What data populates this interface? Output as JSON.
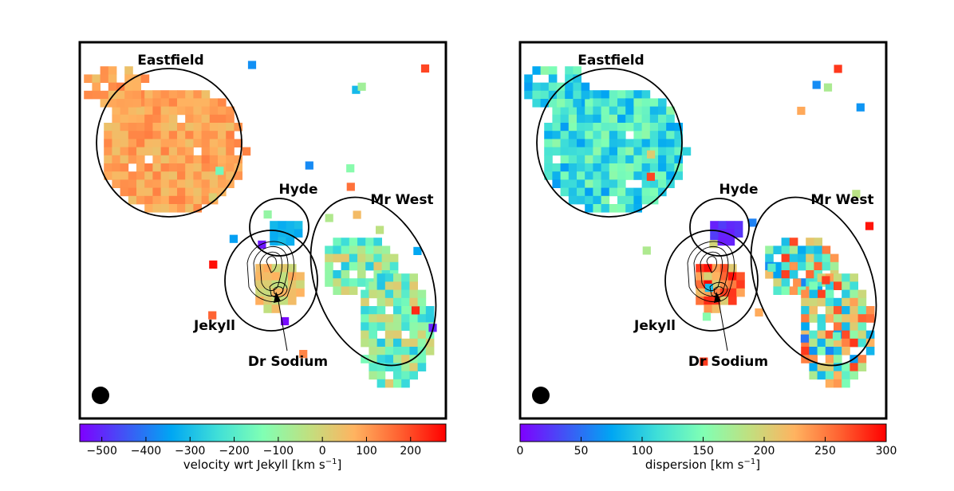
{
  "chart_data": [
    {
      "type": "heatmap",
      "title": "",
      "map_name": "velocity",
      "colorbar": {
        "label_prefix": "velocity wrt Jekyll [km s",
        "label_exp": "−1",
        "label_suffix": "]",
        "range": [
          -550,
          280
        ],
        "ticks": [
          -500,
          -400,
          -300,
          -200,
          -100,
          0,
          100,
          200
        ],
        "tick_labels": [
          "−500",
          "−400",
          "−300",
          "−200",
          "−100",
          "0",
          "100",
          "200"
        ]
      },
      "regions": [
        {
          "name": "Eastfield"
        },
        {
          "name": "Hyde"
        },
        {
          "name": "Mr West"
        },
        {
          "name": "Jekyll"
        },
        {
          "name": "Dr Sodium"
        }
      ],
      "blobs": [
        {
          "region": "Eastfield",
          "mean": 90,
          "spread": 50
        },
        {
          "region": "Hyde",
          "mean": -320,
          "spread": 25
        },
        {
          "region": "Mr West",
          "mean": -130,
          "spread": 160
        },
        {
          "region": "Jekyll",
          "mean": 30,
          "spread": 60
        }
      ]
    },
    {
      "type": "heatmap",
      "title": "",
      "map_name": "dispersion",
      "colorbar": {
        "label_prefix": "dispersion [km s",
        "label_exp": "−1",
        "label_suffix": "]",
        "range": [
          0,
          300
        ],
        "ticks": [
          0,
          50,
          100,
          150,
          200,
          250,
          300
        ],
        "tick_labels": [
          "0",
          "50",
          "100",
          "150",
          "200",
          "250",
          "300"
        ]
      },
      "regions": [
        {
          "name": "Eastfield"
        },
        {
          "name": "Hyde"
        },
        {
          "name": "Mr West"
        },
        {
          "name": "Jekyll"
        },
        {
          "name": "Dr Sodium"
        }
      ],
      "blobs": [
        {
          "region": "Eastfield",
          "mean": 115,
          "spread": 45
        },
        {
          "region": "Hyde",
          "mean": 20,
          "spread": 10
        },
        {
          "region": "Mr West",
          "mean": 170,
          "spread": 110
        },
        {
          "region": "Jekyll",
          "mean": 250,
          "spread": 50
        }
      ]
    }
  ]
}
